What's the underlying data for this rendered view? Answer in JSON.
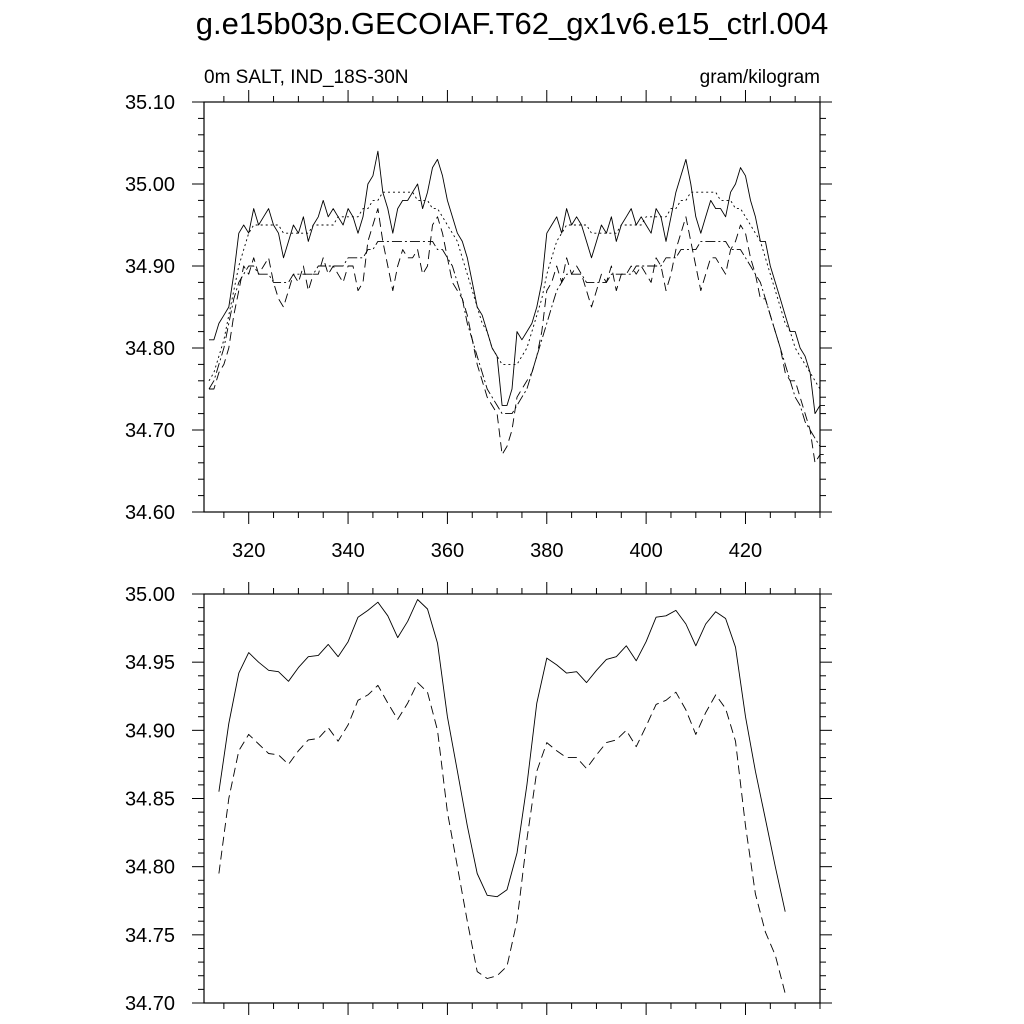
{
  "title": "g.e15b03p.GECOIAF.T62_gx1v6.e15_ctrl.004",
  "chart_data": [
    {
      "type": "line",
      "left_label": "0m SALT, IND_18S-30N",
      "right_label": "gram/kilogram",
      "xlim": [
        311,
        435
      ],
      "ylim": [
        34.6,
        35.1
      ],
      "x_ticks": [
        320,
        340,
        360,
        380,
        400,
        420
      ],
      "y_ticks": [
        "34.60",
        "34.70",
        "34.80",
        "34.90",
        "35.00",
        "35.10"
      ],
      "x_start": 312,
      "x_step": 1,
      "series": [
        {
          "style": "solid",
          "values": [
            34.81,
            34.81,
            34.83,
            34.84,
            34.85,
            34.89,
            34.94,
            34.95,
            34.94,
            34.97,
            34.95,
            34.96,
            34.97,
            34.95,
            34.94,
            34.91,
            34.93,
            34.95,
            34.94,
            34.96,
            34.93,
            34.95,
            34.96,
            34.98,
            34.96,
            34.97,
            34.96,
            34.95,
            34.97,
            34.96,
            34.94,
            34.96,
            35.0,
            35.01,
            35.04,
            34.99,
            34.97,
            34.94,
            34.97,
            34.98,
            34.98,
            34.99,
            35.0,
            34.97,
            34.99,
            35.02,
            35.03,
            35.01,
            34.98,
            34.96,
            34.94,
            34.93,
            34.91,
            34.88,
            34.85,
            34.84,
            34.82,
            34.8,
            34.79,
            34.73,
            34.73,
            34.75,
            34.82,
            34.81,
            34.82,
            34.83,
            34.85,
            34.88,
            34.94,
            34.95,
            34.96,
            34.94,
            34.97,
            34.95,
            34.96,
            34.95,
            34.93,
            34.91,
            34.93,
            34.95,
            34.94,
            34.96,
            34.93,
            34.95,
            34.96,
            34.97,
            34.95,
            34.96,
            34.95,
            34.94,
            34.97,
            34.96,
            34.93,
            34.96,
            34.99,
            35.01,
            35.03,
            35.0,
            34.96,
            34.94,
            34.96,
            34.98,
            34.97,
            34.97,
            34.96,
            34.99,
            35.0,
            35.02,
            35.01,
            34.98,
            34.96,
            34.93,
            34.93,
            34.9,
            34.88,
            34.86,
            34.84,
            34.82,
            34.82,
            34.8,
            34.79,
            34.77,
            34.72,
            34.73,
            34.73
          ]
        },
        {
          "style": "dash-dot",
          "values": [
            34.76,
            34.77,
            34.79,
            34.81,
            34.84,
            34.87,
            34.9,
            34.92,
            34.94,
            34.95,
            34.95,
            34.95,
            34.95,
            34.95,
            34.95,
            34.94,
            34.94,
            34.94,
            34.94,
            34.94,
            34.94,
            34.95,
            34.95,
            34.95,
            34.95,
            34.95,
            34.96,
            34.96,
            34.96,
            34.96,
            34.96,
            34.97,
            34.97,
            34.98,
            34.98,
            34.99,
            34.99,
            34.99,
            34.99,
            34.99,
            34.99,
            34.99,
            34.98,
            34.98,
            34.98,
            34.97,
            34.97,
            34.96,
            34.95,
            34.94,
            34.93,
            34.91,
            34.89,
            34.87,
            34.85,
            34.83,
            34.82,
            34.8,
            34.79,
            34.78,
            34.78,
            34.78,
            34.78,
            34.79,
            34.8,
            34.82,
            34.84,
            34.86,
            34.89,
            34.91,
            34.93,
            34.94,
            34.95,
            34.95,
            34.95,
            34.95,
            34.95,
            34.94,
            34.94,
            34.94,
            34.94,
            34.94,
            34.94,
            34.95,
            34.95,
            34.95,
            34.95,
            34.95,
            34.96,
            34.96,
            34.96,
            34.96,
            34.96,
            34.97,
            34.97,
            34.98,
            34.98,
            34.99,
            34.99,
            34.99,
            34.99,
            34.99,
            34.99,
            34.98,
            34.98,
            34.98,
            34.97,
            34.97,
            34.96,
            34.95,
            34.94,
            34.93,
            34.91,
            34.89,
            34.87,
            34.85,
            34.83,
            34.82,
            34.8,
            34.79,
            34.78,
            34.77,
            34.76,
            34.75
          ]
        },
        {
          "style": "dashed",
          "values": [
            34.75,
            34.75,
            34.77,
            34.78,
            34.8,
            34.84,
            34.87,
            34.9,
            34.89,
            34.91,
            34.89,
            34.9,
            34.91,
            34.88,
            34.86,
            34.85,
            34.87,
            34.89,
            34.88,
            34.9,
            34.87,
            34.89,
            34.89,
            34.91,
            34.89,
            34.9,
            34.89,
            34.88,
            34.9,
            34.9,
            34.87,
            34.88,
            34.93,
            34.95,
            34.97,
            34.93,
            34.9,
            34.87,
            34.9,
            34.92,
            34.91,
            34.91,
            34.92,
            34.89,
            34.9,
            34.95,
            34.96,
            34.94,
            34.91,
            34.88,
            34.87,
            34.86,
            34.84,
            34.81,
            34.78,
            34.76,
            34.74,
            34.73,
            34.72,
            34.67,
            34.68,
            34.7,
            34.74,
            34.75,
            34.76,
            34.77,
            34.79,
            34.82,
            34.87,
            34.88,
            34.9,
            34.88,
            34.91,
            34.89,
            34.9,
            34.89,
            34.87,
            34.85,
            34.87,
            34.89,
            34.88,
            34.9,
            34.87,
            34.89,
            34.89,
            34.9,
            34.89,
            34.9,
            34.89,
            34.88,
            34.91,
            34.9,
            34.87,
            34.89,
            34.92,
            34.94,
            34.96,
            34.93,
            34.9,
            34.87,
            34.89,
            34.91,
            34.91,
            34.9,
            34.89,
            34.92,
            34.93,
            34.95,
            34.94,
            34.91,
            34.89,
            34.86,
            34.86,
            34.84,
            34.82,
            34.8,
            34.77,
            34.76,
            34.76,
            34.74,
            34.72,
            34.7,
            34.66,
            34.67,
            34.67
          ]
        },
        {
          "style": "long-dash-dot",
          "values": [
            34.75,
            34.76,
            34.78,
            34.8,
            34.83,
            34.86,
            34.88,
            34.89,
            34.9,
            34.9,
            34.89,
            34.89,
            34.89,
            34.88,
            34.88,
            34.88,
            34.88,
            34.89,
            34.89,
            34.89,
            34.89,
            34.89,
            34.9,
            34.9,
            34.9,
            34.9,
            34.9,
            34.9,
            34.91,
            34.91,
            34.91,
            34.91,
            34.92,
            34.92,
            34.93,
            34.93,
            34.93,
            34.93,
            34.93,
            34.93,
            34.93,
            34.93,
            34.93,
            34.93,
            34.93,
            34.93,
            34.92,
            34.92,
            34.91,
            34.9,
            34.88,
            34.86,
            34.83,
            34.81,
            34.79,
            34.77,
            34.75,
            34.74,
            34.73,
            34.72,
            34.72,
            34.72,
            34.73,
            34.74,
            34.75,
            34.77,
            34.79,
            34.81,
            34.83,
            34.85,
            34.87,
            34.88,
            34.89,
            34.89,
            34.89,
            34.89,
            34.88,
            34.88,
            34.88,
            34.88,
            34.88,
            34.89,
            34.89,
            34.89,
            34.89,
            34.89,
            34.9,
            34.9,
            34.9,
            34.9,
            34.9,
            34.9,
            34.91,
            34.91,
            34.91,
            34.92,
            34.92,
            34.92,
            34.92,
            34.93,
            34.93,
            34.93,
            34.93,
            34.93,
            34.93,
            34.92,
            34.92,
            34.92,
            34.91,
            34.9,
            34.89,
            34.88,
            34.86,
            34.84,
            34.82,
            34.8,
            34.78,
            34.76,
            34.74,
            34.73,
            34.71,
            34.7,
            34.69,
            34.68
          ]
        }
      ]
    },
    {
      "type": "line",
      "xlim": [
        311,
        435
      ],
      "ylim": [
        34.7,
        35.0
      ],
      "x_ticks": [
        320,
        340,
        360,
        380,
        400,
        420
      ],
      "y_ticks": [
        "34.70",
        "34.75",
        "34.80",
        "34.85",
        "34.90",
        "34.95",
        "35.00"
      ],
      "x_start": 314,
      "x_step": 2,
      "series": [
        {
          "style": "solid",
          "values": [
            34.855,
            34.905,
            34.942,
            34.957,
            34.95,
            34.944,
            34.943,
            34.936,
            34.946,
            34.954,
            34.955,
            34.963,
            34.954,
            34.965,
            34.983,
            34.988,
            34.994,
            34.984,
            34.968,
            34.98,
            34.996,
            34.989,
            34.964,
            34.91,
            34.87,
            34.83,
            34.795,
            34.779,
            34.778,
            34.783,
            34.81,
            34.86,
            34.92,
            34.953,
            34.948,
            34.942,
            34.943,
            34.935,
            34.944,
            34.952,
            34.954,
            34.962,
            34.951,
            34.965,
            34.983,
            34.984,
            34.988,
            34.978,
            34.962,
            34.978,
            34.987,
            34.982,
            34.961,
            34.91,
            34.87,
            34.835,
            34.8,
            34.767
          ]
        },
        {
          "style": "dashed",
          "values": [
            34.795,
            34.85,
            34.885,
            34.897,
            34.89,
            34.883,
            34.882,
            34.875,
            34.885,
            34.893,
            34.894,
            34.902,
            34.892,
            34.904,
            34.922,
            34.926,
            34.933,
            34.92,
            34.908,
            34.92,
            34.935,
            34.928,
            34.9,
            34.84,
            34.8,
            34.76,
            34.723,
            34.718,
            34.72,
            34.727,
            34.76,
            34.82,
            34.87,
            34.891,
            34.885,
            34.88,
            34.88,
            34.872,
            34.882,
            34.891,
            34.893,
            34.9,
            34.888,
            34.903,
            34.919,
            34.922,
            34.928,
            34.915,
            34.897,
            34.913,
            34.926,
            34.916,
            34.892,
            34.83,
            34.78,
            34.752,
            34.735,
            34.707
          ]
        }
      ]
    }
  ]
}
